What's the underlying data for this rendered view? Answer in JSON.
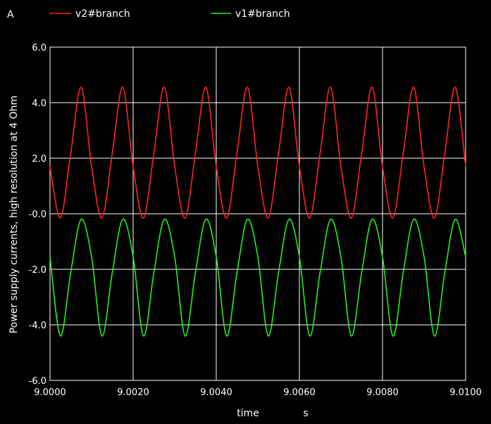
{
  "corner_label": "A",
  "colors": {
    "background": "#000000",
    "grid": "#ffffff",
    "text": "#ffffff"
  },
  "chart_data": {
    "type": "line",
    "title": "",
    "xlabel": "time",
    "xunit": "s",
    "ylabel": "Power supply currents, high resolution at 4 Ohm",
    "xlim": [
      9.0,
      9.01
    ],
    "ylim": [
      -6.0,
      6.0
    ],
    "x_ticks": [
      9.0,
      9.002,
      9.004,
      9.006,
      9.008,
      9.01
    ],
    "x_tick_labels": [
      "9.0000",
      "9.0020",
      "9.0040",
      "9.0060",
      "9.0080",
      "9.0100"
    ],
    "y_ticks": [
      6.0,
      4.0,
      2.0,
      0.0,
      -2.0,
      -4.0,
      -6.0
    ],
    "y_tick_labels": [
      "6.0",
      "4.0",
      "2.0",
      "-0.0",
      "-2.0",
      "-4.0",
      "-6.0"
    ],
    "grid": true,
    "legend_position": "top",
    "series": [
      {
        "name": "v2#branch",
        "color": "#ff2222",
        "x": [
          9.0,
          9.00025,
          9.0005,
          9.00075,
          9.001,
          9.00125,
          9.0015,
          9.00175,
          9.002,
          9.00225,
          9.0025,
          9.00275,
          9.003,
          9.00325,
          9.0035,
          9.00375,
          9.004,
          9.00425,
          9.0045,
          9.00475,
          9.005,
          9.00525,
          9.0055,
          9.00575,
          9.006,
          9.00625,
          9.0065,
          9.00675,
          9.007,
          9.00725,
          9.0075,
          9.00775,
          9.008,
          9.00825,
          9.0085,
          9.00875,
          9.009,
          9.00925,
          9.0095,
          9.00975,
          9.01
        ],
        "values": [
          1.7,
          -0.15,
          2.2,
          4.55,
          1.7,
          -0.15,
          2.2,
          4.55,
          1.7,
          -0.15,
          2.2,
          4.55,
          1.7,
          -0.15,
          2.2,
          4.55,
          1.7,
          -0.15,
          2.2,
          4.55,
          1.7,
          -0.15,
          2.2,
          4.55,
          1.7,
          -0.15,
          2.2,
          4.55,
          1.7,
          -0.15,
          2.2,
          4.55,
          1.7,
          -0.15,
          2.2,
          4.55,
          1.7,
          -0.15,
          2.2,
          4.55,
          1.7
        ]
      },
      {
        "name": "v1#branch",
        "color": "#22ee22",
        "x": [
          9.0,
          9.00025,
          9.0005,
          9.00075,
          9.001,
          9.00125,
          9.0015,
          9.00175,
          9.002,
          9.00225,
          9.0025,
          9.00275,
          9.003,
          9.00325,
          9.0035,
          9.00375,
          9.004,
          9.00425,
          9.0045,
          9.00475,
          9.005,
          9.00525,
          9.0055,
          9.00575,
          9.006,
          9.00625,
          9.0065,
          9.00675,
          9.007,
          9.00725,
          9.0075,
          9.00775,
          9.008,
          9.00825,
          9.0085,
          9.00875,
          9.009,
          9.00925,
          9.0095,
          9.00975,
          9.01
        ],
        "values": [
          -1.55,
          -4.4,
          -2.1,
          -0.2,
          -1.55,
          -4.4,
          -2.1,
          -0.2,
          -1.55,
          -4.4,
          -2.1,
          -0.2,
          -1.55,
          -4.4,
          -2.1,
          -0.2,
          -1.55,
          -4.4,
          -2.1,
          -0.2,
          -1.55,
          -4.4,
          -2.1,
          -0.2,
          -1.55,
          -4.4,
          -2.1,
          -0.2,
          -1.55,
          -4.4,
          -2.1,
          -0.2,
          -1.55,
          -4.4,
          -2.1,
          -0.2,
          -1.55,
          -4.4,
          -2.1,
          -0.2,
          -1.55
        ]
      }
    ]
  }
}
